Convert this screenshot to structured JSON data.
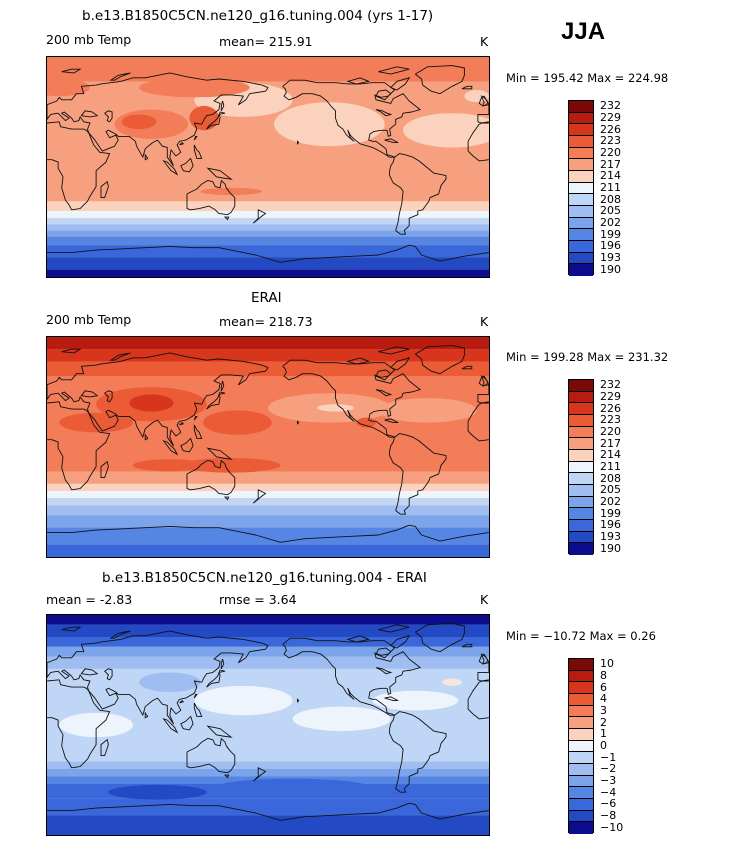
{
  "season": "JJA",
  "chart_data": [
    {
      "type": "heatmap",
      "title": "b.e13.B1850C5CN.ne120_g16.tuning.004 (yrs 1-17)",
      "left_label": "200 mb Temp",
      "stat_label": "mean= 215.91",
      "mean": 215.91,
      "units": "K",
      "minmax": "Min = 195.42 Max = 224.98",
      "min": 195.42,
      "max": 224.98,
      "projection": "cylindrical equidistant, Pacific-centered",
      "colorbar_levels": [
        "232",
        "229",
        "226",
        "223",
        "220",
        "217",
        "214",
        "211",
        "208",
        "205",
        "202",
        "199",
        "196",
        "193",
        "190"
      ],
      "colorbar_colors": [
        "#7a0a08",
        "#b81b10",
        "#d8351d",
        "#ea5b36",
        "#f27d58",
        "#f6a07f",
        "#fbd2bd",
        "#eef4fb",
        "#c0d6f6",
        "#9fbdf1",
        "#7ba4ea",
        "#5686e4",
        "#3a68db",
        "#2449c4",
        "#0c0c8c"
      ],
      "zonal_bands": [
        {
          "latitude_range": "90N-50N",
          "level_interval": "214-220"
        },
        {
          "latitude_range": "40N-30S",
          "level_interval": "217-223"
        },
        {
          "latitude_range": "30S-50S",
          "level_interval": "205-214"
        },
        {
          "latitude_range": "50S-90S",
          "level_interval": "193-205"
        }
      ]
    },
    {
      "type": "heatmap",
      "title": "ERAI",
      "left_label": "200 mb Temp",
      "stat_label": "mean= 218.73",
      "mean": 218.73,
      "units": "K",
      "minmax": "Min = 199.28 Max = 231.32",
      "min": 199.28,
      "max": 231.32,
      "projection": "cylindrical equidistant, Pacific-centered",
      "colorbar_levels": [
        "232",
        "229",
        "226",
        "223",
        "220",
        "217",
        "214",
        "211",
        "208",
        "205",
        "202",
        "199",
        "196",
        "193",
        "190"
      ],
      "colorbar_colors": [
        "#7a0a08",
        "#b81b10",
        "#d8351d",
        "#ea5b36",
        "#f27d58",
        "#f6a07f",
        "#fbd2bd",
        "#eef4fb",
        "#c0d6f6",
        "#9fbdf1",
        "#7ba4ea",
        "#5686e4",
        "#3a68db",
        "#2449c4",
        "#0c0c8c"
      ],
      "zonal_bands": [
        {
          "latitude_range": "90N-60N",
          "level_interval": "223-232"
        },
        {
          "latitude_range": "50N-30S",
          "level_interval": "217-226"
        },
        {
          "latitude_range": "30S-50S",
          "level_interval": "208-217"
        },
        {
          "latitude_range": "50S-90S",
          "level_interval": "196-208"
        }
      ]
    },
    {
      "type": "heatmap",
      "title": "b.e13.B1850C5CN.ne120_g16.tuning.004 - ERAI",
      "left_label": "mean =   -2.83",
      "stat_label": "rmse =    3.64",
      "mean": -2.83,
      "rmse": 3.64,
      "units": "K",
      "minmax": "Min = −10.72 Max =    0.26",
      "min": -10.72,
      "max": 0.26,
      "projection": "cylindrical equidistant, Pacific-centered",
      "colorbar_levels": [
        "10",
        "8",
        "6",
        "4",
        "3",
        "2",
        "1",
        "0",
        "−1",
        "−2",
        "−3",
        "−4",
        "−6",
        "−8",
        "−10"
      ],
      "colorbar_colors": [
        "#7a0a08",
        "#b81b10",
        "#d8351d",
        "#ea5b36",
        "#f27d58",
        "#f6a07f",
        "#fbd2bd",
        "#eef4fb",
        "#c0d6f6",
        "#9fbdf1",
        "#7ba4ea",
        "#5686e4",
        "#3a68db",
        "#2449c4",
        "#0c0c8c"
      ],
      "zonal_bands": [
        {
          "latitude_range": "90N-60N",
          "level_interval": "-10 to -4"
        },
        {
          "latitude_range": "50N-30S",
          "level_interval": "-3 to 0"
        },
        {
          "latitude_range": "30S-60S",
          "level_interval": "-6 to -2"
        },
        {
          "latitude_range": "60S-90S",
          "level_interval": "-8 to -4"
        }
      ]
    }
  ]
}
